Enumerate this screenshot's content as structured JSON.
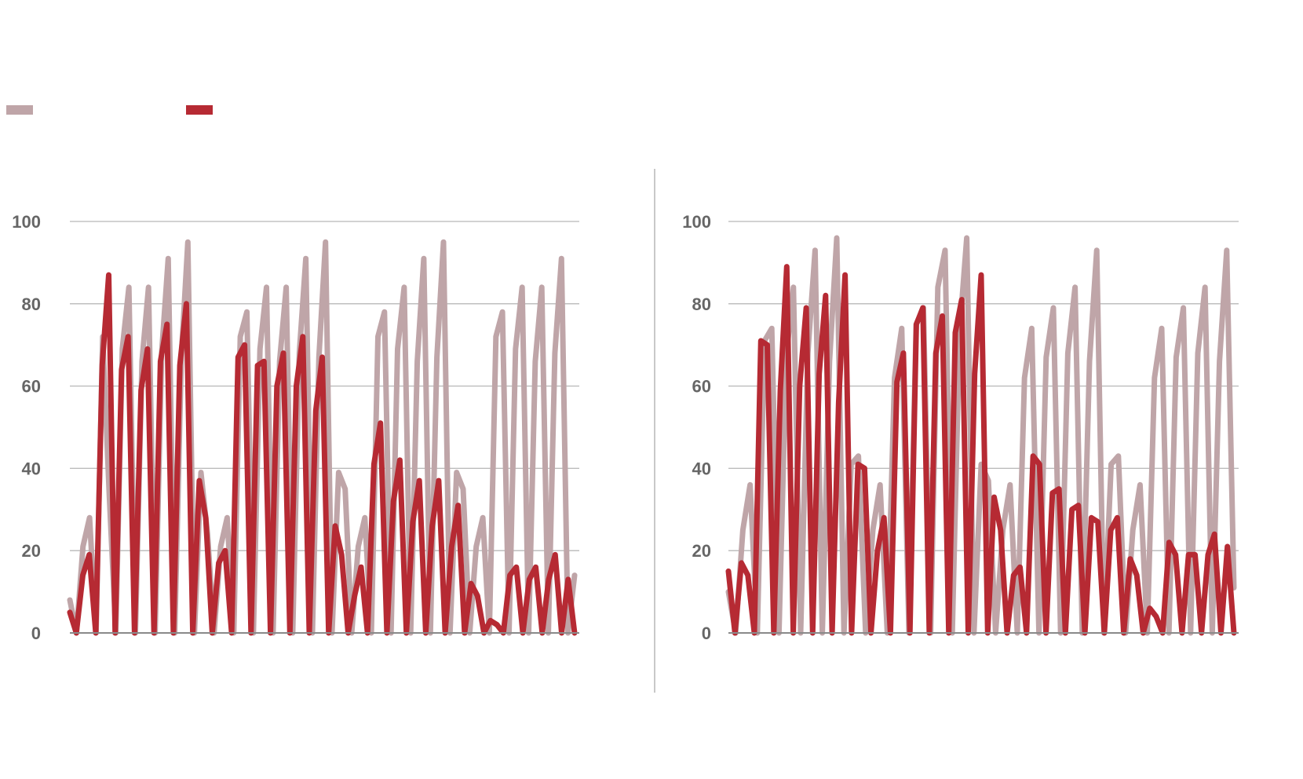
{
  "colors": {
    "series_light": "#bfa5a8",
    "series_dark": "#b62a33",
    "grid": "#b8b8b8",
    "axis": "#8a8a8a",
    "divider": "#c8c8c8",
    "tick_text": "#666666"
  },
  "legend": {
    "placement": "top-left",
    "entries": [
      {
        "series": 0,
        "label": "",
        "color_key": "series_light"
      },
      {
        "series": 1,
        "label": "",
        "color_key": "series_dark"
      }
    ]
  },
  "chart_data": [
    {
      "type": "line",
      "ylim": [
        0,
        100
      ],
      "y_ticks": [
        0,
        20,
        40,
        60,
        80,
        100
      ],
      "y_tick_labels": [
        "0",
        "20",
        "40",
        "60",
        "80",
        "100"
      ],
      "grid": true,
      "x_labels_visible": false,
      "series": [
        {
          "values": [
            8,
            0,
            21,
            28,
            0,
            72,
            34,
            0,
            69,
            84,
            0,
            66,
            84,
            0,
            68,
            91,
            0,
            67,
            95,
            0,
            39,
            24,
            0,
            21,
            28,
            0,
            72,
            78,
            0,
            69,
            84,
            0,
            66,
            84,
            0,
            68,
            91,
            0,
            67,
            95,
            0,
            39,
            35,
            0,
            21,
            28,
            0,
            72,
            78,
            0,
            69,
            84,
            0,
            66,
            91,
            0,
            67,
            95,
            0,
            39,
            35,
            0,
            21,
            28,
            0,
            72,
            78,
            0,
            69,
            84,
            0,
            66,
            84,
            0,
            68,
            91,
            0,
            14
          ]
        },
        {
          "values": [
            5,
            0,
            14,
            19,
            0,
            65,
            87,
            0,
            64,
            72,
            0,
            59,
            69,
            0,
            66,
            75,
            0,
            65,
            80,
            0,
            37,
            28,
            0,
            17,
            20,
            0,
            67,
            70,
            0,
            65,
            66,
            0,
            60,
            68,
            0,
            60,
            72,
            0,
            54,
            67,
            0,
            26,
            19,
            0,
            9,
            16,
            0,
            41,
            51,
            0,
            32,
            42,
            0,
            27,
            37,
            0,
            26,
            37,
            0,
            21,
            31,
            0,
            12,
            9,
            0,
            3,
            2,
            0,
            14,
            16,
            0,
            13,
            16,
            0,
            13,
            19,
            0,
            13,
            0
          ]
        }
      ]
    },
    {
      "type": "line",
      "ylim": [
        0,
        100
      ],
      "y_ticks": [
        0,
        20,
        40,
        60,
        80,
        100
      ],
      "y_tick_labels": [
        "0",
        "20",
        "40",
        "60",
        "80",
        "100"
      ],
      "grid": true,
      "x_labels_visible": false,
      "series": [
        {
          "values": [
            10,
            0,
            25,
            36,
            0,
            71,
            74,
            0,
            67,
            84,
            0,
            68,
            93,
            0,
            66,
            96,
            0,
            41,
            43,
            0,
            25,
            36,
            0,
            62,
            74,
            0,
            75,
            79,
            0,
            84,
            93,
            0,
            73,
            96,
            0,
            41,
            37,
            0,
            25,
            36,
            0,
            62,
            74,
            0,
            67,
            79,
            0,
            68,
            84,
            0,
            66,
            93,
            0,
            41,
            43,
            0,
            25,
            36,
            0,
            62,
            74,
            0,
            67,
            79,
            0,
            68,
            84,
            0,
            66,
            93,
            11
          ]
        },
        {
          "values": [
            15,
            0,
            17,
            14,
            0,
            71,
            70,
            0,
            59,
            89,
            0,
            60,
            79,
            0,
            63,
            82,
            0,
            56,
            87,
            0,
            41,
            40,
            0,
            20,
            28,
            0,
            61,
            68,
            0,
            75,
            79,
            0,
            68,
            77,
            0,
            73,
            81,
            0,
            63,
            87,
            0,
            33,
            25,
            0,
            14,
            16,
            0,
            43,
            41,
            0,
            34,
            35,
            0,
            30,
            31,
            0,
            28,
            27,
            0,
            25,
            28,
            0,
            18,
            14,
            0,
            6,
            4,
            0,
            22,
            19,
            0,
            19,
            19,
            0,
            19,
            24,
            0,
            21,
            0
          ]
        }
      ]
    }
  ]
}
